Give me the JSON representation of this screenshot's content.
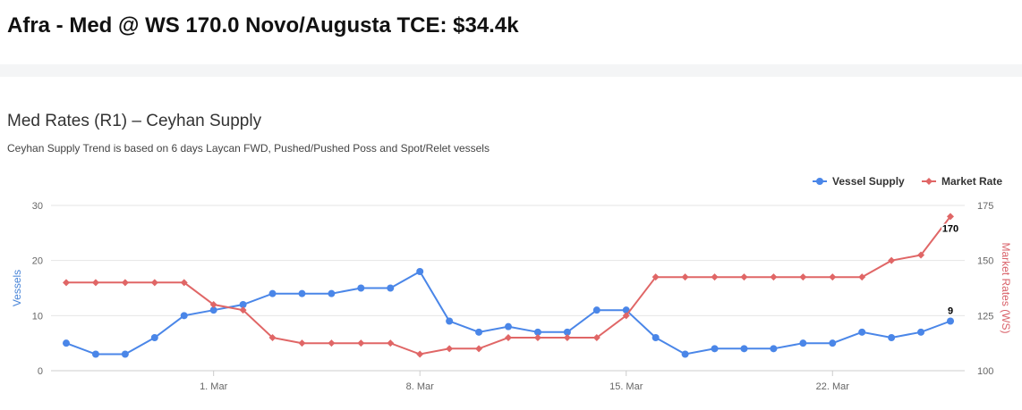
{
  "header": {
    "title": "Afra - Med @ WS 170.0 Novo/Augusta TCE: $34.4k"
  },
  "card": {
    "title": "Med Rates (R1) – Ceyhan Supply",
    "subtitle": "Ceyhan Supply Trend is based on 6 days Laycan FWD, Pushed/Pushed Poss and Spot/Relet vessels"
  },
  "chart_data": {
    "type": "line",
    "title": "Med Rates (R1) – Ceyhan Supply",
    "x": [
      "2020-02-25",
      "2020-02-26",
      "2020-02-27",
      "2020-02-28",
      "2020-02-29",
      "2020-03-01",
      "2020-03-02",
      "2020-03-03",
      "2020-03-04",
      "2020-03-05",
      "2020-03-06",
      "2020-03-07",
      "2020-03-08",
      "2020-03-09",
      "2020-03-10",
      "2020-03-11",
      "2020-03-12",
      "2020-03-13",
      "2020-03-14",
      "2020-03-15",
      "2020-03-16",
      "2020-03-17",
      "2020-03-18",
      "2020-03-19",
      "2020-03-20",
      "2020-03-21",
      "2020-03-22",
      "2020-03-23",
      "2020-03-24",
      "2020-03-25",
      "2020-03-26"
    ],
    "x_ticks": [
      "1. Mar",
      "8. Mar",
      "15. Mar",
      "22. Mar"
    ],
    "legend_position": "top-right",
    "grid": true,
    "y_left": {
      "label": "Vessels",
      "range": [
        0,
        30
      ],
      "ticks": [
        0,
        10,
        20,
        30
      ],
      "color": "#4a86d8"
    },
    "y_right": {
      "label": "Market Rates (WS)",
      "range": [
        100,
        175
      ],
      "ticks": [
        100,
        125,
        150,
        175
      ],
      "color": "#d9626a"
    },
    "series": [
      {
        "name": "Vessel Supply",
        "axis": "left",
        "color": "#4a86e8",
        "marker": "circle",
        "values": [
          5,
          3,
          3,
          6,
          10,
          11,
          12,
          14,
          14,
          14,
          15,
          15,
          18,
          9,
          7,
          8,
          7,
          7,
          11,
          11,
          6,
          3,
          4,
          4,
          4,
          5,
          5,
          7,
          6,
          7,
          9
        ],
        "last_label": "9"
      },
      {
        "name": "Market Rate",
        "axis": "right",
        "color": "#e06666",
        "marker": "diamond",
        "values": [
          140,
          140,
          140,
          140,
          140,
          130,
          127.5,
          115,
          112.5,
          112.5,
          112.5,
          112.5,
          107.5,
          110,
          110,
          115,
          115,
          115,
          115,
          125,
          142.5,
          142.5,
          142.5,
          142.5,
          142.5,
          142.5,
          142.5,
          142.5,
          150,
          152.5,
          170
        ],
        "last_label": "170"
      }
    ]
  }
}
